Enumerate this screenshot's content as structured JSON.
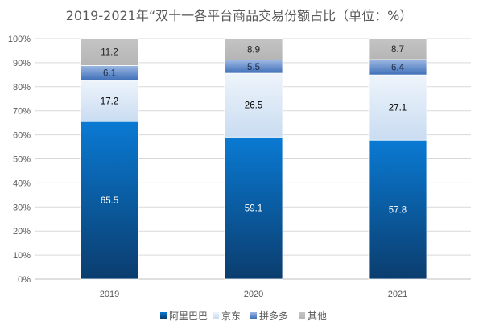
{
  "chart_data": {
    "type": "bar",
    "stacked": true,
    "percent_stacked": true,
    "title": "2019-2021年“双十一各平台商品交易份额占比（单位：%）",
    "categories": [
      "2019",
      "2020",
      "2021"
    ],
    "series": [
      {
        "name": "阿里巴巴",
        "values": [
          65.5,
          59.1,
          57.8
        ]
      },
      {
        "name": "京东",
        "values": [
          17.2,
          26.5,
          27.1
        ]
      },
      {
        "name": "拼多多",
        "values": [
          6.1,
          5.5,
          6.4
        ]
      },
      {
        "name": "其他",
        "values": [
          11.2,
          8.9,
          8.7
        ]
      }
    ],
    "y_ticks": [
      "0%",
      "10%",
      "20%",
      "30%",
      "40%",
      "50%",
      "60%",
      "70%",
      "80%",
      "90%",
      "100%"
    ],
    "ylim": [
      0,
      100
    ],
    "grid": true,
    "legend": "bottom",
    "colors": {
      "阿里巴巴": "#0070c0",
      "京东": "#dae7f6",
      "拼多多": "#4f81bd",
      "其他": "#bfbfbf"
    }
  }
}
